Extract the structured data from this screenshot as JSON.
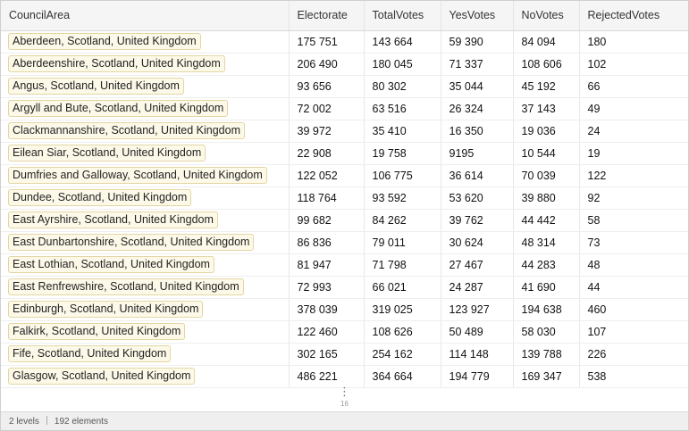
{
  "columns": [
    "CouncilArea",
    "Electorate",
    "TotalVotes",
    "YesVotes",
    "NoVotes",
    "RejectedVotes"
  ],
  "rows": [
    {
      "area": "Aberdeen,  Scotland,  United Kingdom",
      "electorate": "175 751",
      "total": "143 664",
      "yes": "59 390",
      "no": "84 094",
      "rejected": "180"
    },
    {
      "area": "Aberdeenshire,  Scotland,  United Kingdom",
      "electorate": "206 490",
      "total": "180 045",
      "yes": "71 337",
      "no": "108 606",
      "rejected": "102"
    },
    {
      "area": "Angus,  Scotland,  United Kingdom",
      "electorate": "93 656",
      "total": "80 302",
      "yes": "35 044",
      "no": "45 192",
      "rejected": "66"
    },
    {
      "area": "Argyll and Bute,  Scotland,  United Kingdom",
      "electorate": "72 002",
      "total": "63 516",
      "yes": "26 324",
      "no": "37 143",
      "rejected": "49"
    },
    {
      "area": "Clackmannanshire,  Scotland,  United Kingdom",
      "electorate": "39 972",
      "total": "35 410",
      "yes": "16 350",
      "no": "19 036",
      "rejected": "24"
    },
    {
      "area": "Eilean Siar,  Scotland,  United Kingdom",
      "electorate": "22 908",
      "total": "19 758",
      "yes": "9195",
      "no": "10 544",
      "rejected": "19"
    },
    {
      "area": "Dumfries and Galloway,  Scotland,  United Kingdom",
      "electorate": "122 052",
      "total": "106 775",
      "yes": "36 614",
      "no": "70 039",
      "rejected": "122"
    },
    {
      "area": "Dundee,  Scotland,  United Kingdom",
      "electorate": "118 764",
      "total": "93 592",
      "yes": "53 620",
      "no": "39 880",
      "rejected": "92"
    },
    {
      "area": "East Ayrshire,  Scotland,  United Kingdom",
      "electorate": "99 682",
      "total": "84 262",
      "yes": "39 762",
      "no": "44 442",
      "rejected": "58"
    },
    {
      "area": "East Dunbartonshire,  Scotland,  United Kingdom",
      "electorate": "86 836",
      "total": "79 011",
      "yes": "30 624",
      "no": "48 314",
      "rejected": "73"
    },
    {
      "area": "East Lothian,  Scotland,  United Kingdom",
      "electorate": "81 947",
      "total": "71 798",
      "yes": "27 467",
      "no": "44 283",
      "rejected": "48"
    },
    {
      "area": "East Renfrewshire,  Scotland,  United Kingdom",
      "electorate": "72 993",
      "total": "66 021",
      "yes": "24 287",
      "no": "41 690",
      "rejected": "44"
    },
    {
      "area": "Edinburgh,  Scotland,  United Kingdom",
      "electorate": "378 039",
      "total": "319 025",
      "yes": "123 927",
      "no": "194 638",
      "rejected": "460"
    },
    {
      "area": "Falkirk,  Scotland,  United Kingdom",
      "electorate": "122 460",
      "total": "108 626",
      "yes": "50 489",
      "no": "58 030",
      "rejected": "107"
    },
    {
      "area": "Fife,  Scotland,  United Kingdom",
      "electorate": "302 165",
      "total": "254 162",
      "yes": "114 148",
      "no": "139 788",
      "rejected": "226"
    },
    {
      "area": "Glasgow,  Scotland,  United Kingdom",
      "electorate": "486 221",
      "total": "364 664",
      "yes": "194 779",
      "no": "169 347",
      "rejected": "538"
    }
  ],
  "more": {
    "dots": "⋮",
    "count": "16"
  },
  "footer": {
    "levels": "2 levels",
    "elements": "192 elements"
  }
}
